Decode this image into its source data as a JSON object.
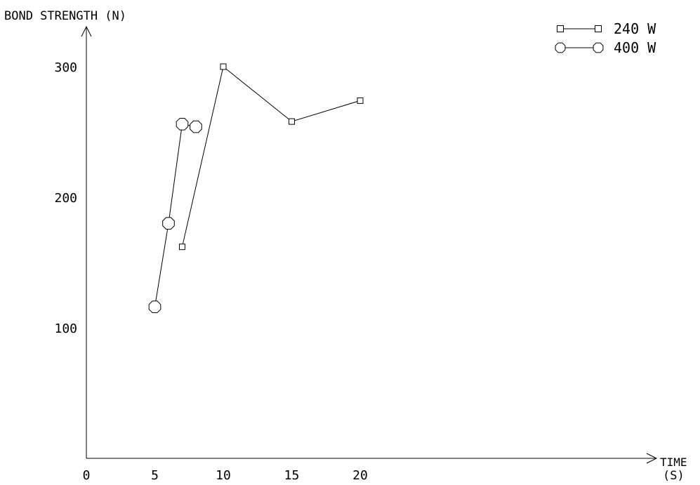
{
  "chart_data": {
    "type": "line",
    "ylabel": "BOND STRENGTH (N)",
    "xlabel_line1": "TIME",
    "xlabel_line2": "(S)",
    "xlim": [
      0,
      20
    ],
    "ylim": [
      0,
      300
    ],
    "xticks": [
      0,
      5,
      10,
      15,
      20
    ],
    "yticks": [
      100,
      200,
      300
    ],
    "grid": false,
    "legend_position": "top-right",
    "series": [
      {
        "name": "240 W",
        "marker": "square",
        "x": [
          7,
          10,
          15,
          20
        ],
        "y": [
          162,
          300,
          258,
          274
        ]
      },
      {
        "name": "400 W",
        "marker": "octagon",
        "x": [
          5,
          6,
          7,
          8
        ],
        "y": [
          116,
          180,
          256,
          254
        ]
      }
    ]
  }
}
